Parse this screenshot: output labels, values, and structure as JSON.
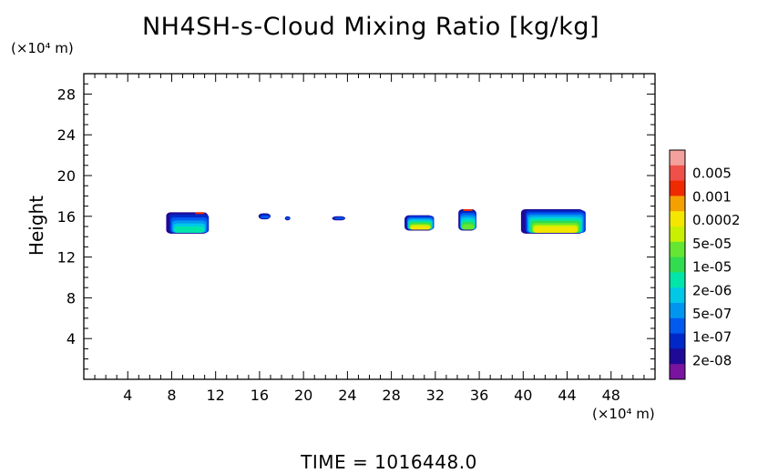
{
  "chart_data": {
    "type": "heatmap",
    "title": "NH4SH-s-Cloud Mixing Ratio [kg/kg]",
    "ylabel": "Height",
    "y_unit": "(×10⁴ m)",
    "x_unit": "(×10⁴ m)",
    "footer": "TIME = 1016448.0",
    "xlim": [
      0,
      52
    ],
    "ylim": [
      0,
      30
    ],
    "x_ticks": [
      4,
      8,
      12,
      16,
      20,
      24,
      28,
      32,
      36,
      40,
      44,
      48
    ],
    "y_ticks": [
      4,
      8,
      12,
      16,
      20,
      24,
      28
    ],
    "colorbar": {
      "labels": [
        "0.005",
        "0.001",
        "0.0002",
        "5e-05",
        "1e-05",
        "2e-06",
        "5e-07",
        "1e-07",
        "2e-08"
      ],
      "colors": [
        "#f4a09c",
        "#f0504a",
        "#f02a00",
        "#f4a000",
        "#f4e600",
        "#c8f000",
        "#64e632",
        "#32dc50",
        "#00e6aa",
        "#00c8e6",
        "#0096f0",
        "#005af0",
        "#0028c8",
        "#1e0a96",
        "#7814a0"
      ]
    },
    "clouds": [
      {
        "x_range": [
          7.5,
          11.3
        ],
        "y_range": [
          14.3,
          16.4
        ],
        "peak": "2e-06"
      },
      {
        "x_range": [
          15.9,
          17.0
        ],
        "y_range": [
          15.7,
          16.3
        ],
        "peak": "1e-07"
      },
      {
        "x_range": [
          18.3,
          18.8
        ],
        "y_range": [
          15.6,
          16.0
        ],
        "peak": "1e-07"
      },
      {
        "x_range": [
          22.6,
          23.8
        ],
        "y_range": [
          15.6,
          16.0
        ],
        "peak": "1e-07"
      },
      {
        "x_range": [
          29.2,
          31.8
        ],
        "y_range": [
          14.6,
          16.1
        ],
        "peak": "5e-05"
      },
      {
        "x_range": [
          34.1,
          35.7
        ],
        "y_range": [
          14.6,
          16.7
        ],
        "peak": "1e-05"
      },
      {
        "x_range": [
          39.8,
          45.5
        ],
        "y_range": [
          14.3,
          16.7
        ],
        "peak": "5e-05"
      }
    ]
  }
}
